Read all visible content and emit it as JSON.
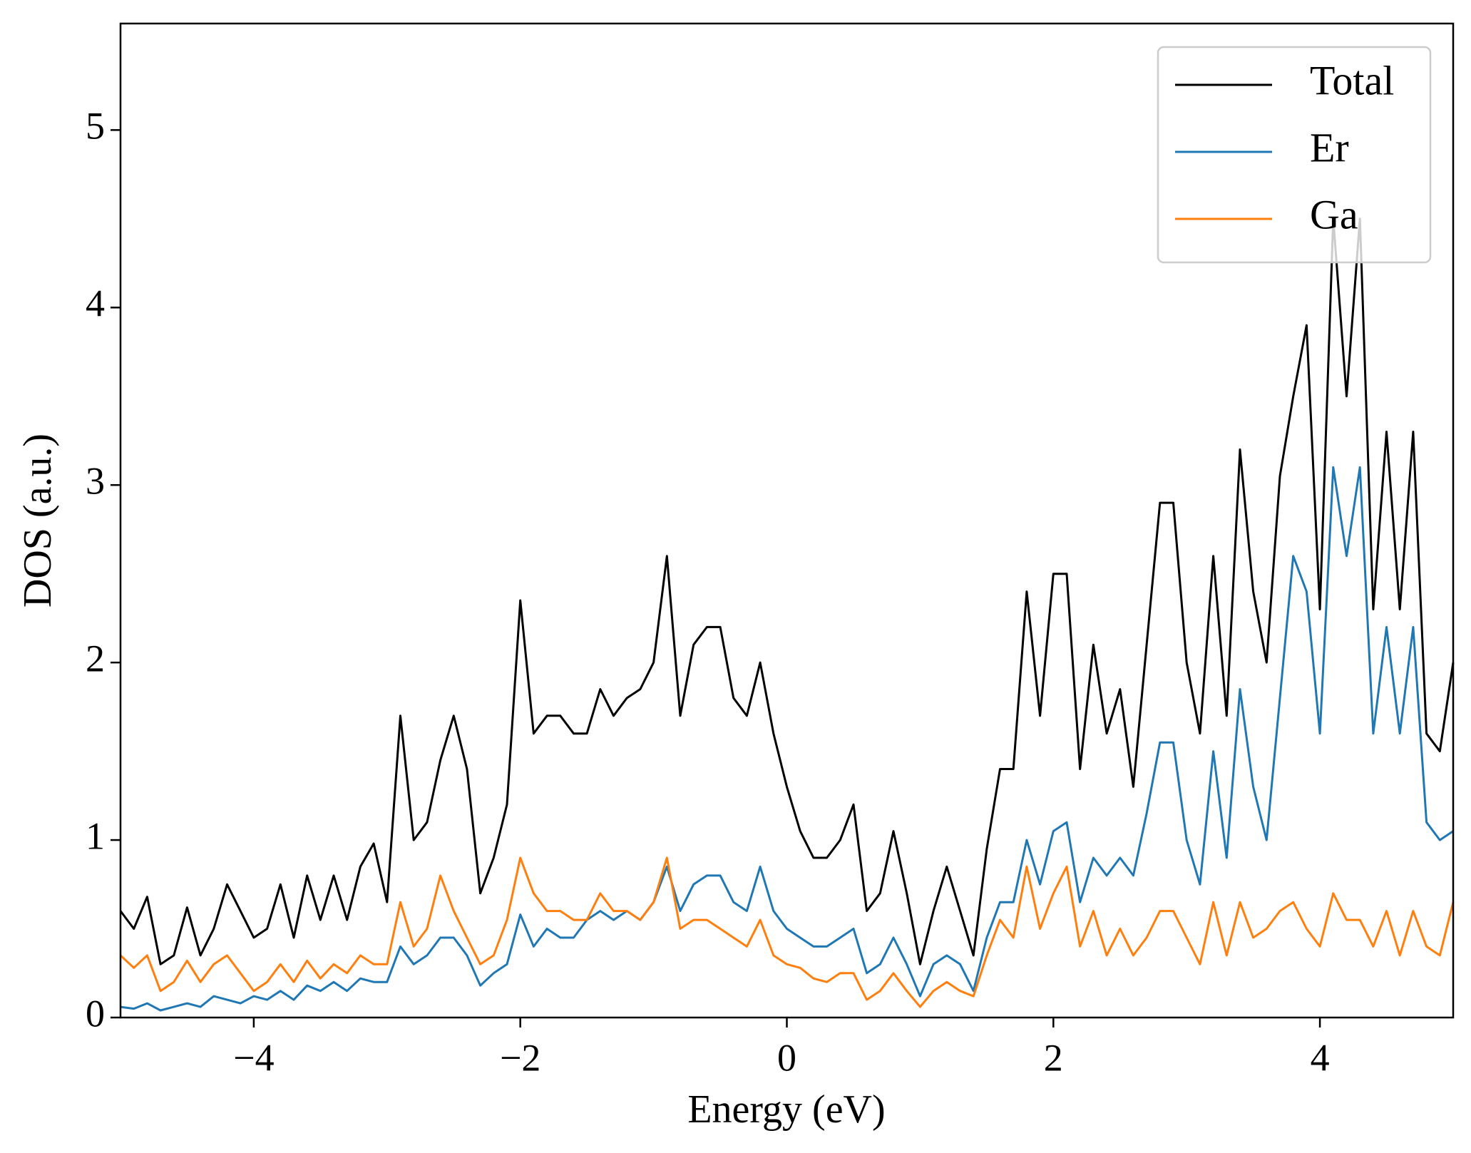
{
  "chart_data": {
    "type": "line",
    "xlabel": "Energy (eV)",
    "ylabel": "DOS (a.u.)",
    "x": [
      -5.0,
      -4.9,
      -4.8,
      -4.7,
      -4.6,
      -4.5,
      -4.4,
      -4.3,
      -4.2,
      -4.1,
      -4.0,
      -3.9,
      -3.8,
      -3.7,
      -3.6,
      -3.5,
      -3.4,
      -3.3,
      -3.2,
      -3.1,
      -3.0,
      -2.9,
      -2.8,
      -2.7,
      -2.6,
      -2.5,
      -2.4,
      -2.3,
      -2.2,
      -2.1,
      -2.0,
      -1.9,
      -1.8,
      -1.7,
      -1.6,
      -1.5,
      -1.4,
      -1.3,
      -1.2,
      -1.1,
      -1.0,
      -0.9,
      -0.8,
      -0.7,
      -0.6,
      -0.5,
      -0.4,
      -0.3,
      -0.2,
      -0.1,
      0.0,
      0.1,
      0.2,
      0.3,
      0.4,
      0.5,
      0.6,
      0.7,
      0.8,
      0.9,
      1.0,
      1.1,
      1.2,
      1.3,
      1.4,
      1.5,
      1.6,
      1.7,
      1.8,
      1.9,
      2.0,
      2.1,
      2.2,
      2.3,
      2.4,
      2.5,
      2.6,
      2.7,
      2.8,
      2.9,
      3.0,
      3.1,
      3.2,
      3.3,
      3.4,
      3.5,
      3.6,
      3.7,
      3.8,
      3.9,
      4.0,
      4.1,
      4.2,
      4.3,
      4.4,
      4.5,
      4.6,
      4.7,
      4.8,
      4.9,
      5.0
    ],
    "series": [
      {
        "name": "Total",
        "color": "#000000",
        "values": [
          0.6,
          0.5,
          0.68,
          0.3,
          0.35,
          0.62,
          0.35,
          0.5,
          0.75,
          0.6,
          0.45,
          0.5,
          0.75,
          0.45,
          0.8,
          0.55,
          0.8,
          0.55,
          0.85,
          0.98,
          0.65,
          1.7,
          1.0,
          1.1,
          1.45,
          1.7,
          1.4,
          0.7,
          0.9,
          1.2,
          2.35,
          1.6,
          1.7,
          1.7,
          1.6,
          1.6,
          1.85,
          1.7,
          1.8,
          1.85,
          2.0,
          2.6,
          1.7,
          2.1,
          2.2,
          2.2,
          1.8,
          1.7,
          2.0,
          1.6,
          1.3,
          1.05,
          0.9,
          0.9,
          1.0,
          1.2,
          0.6,
          0.7,
          1.05,
          0.7,
          0.3,
          0.6,
          0.85,
          0.6,
          0.35,
          0.95,
          1.4,
          1.4,
          2.4,
          1.7,
          2.5,
          2.5,
          1.4,
          2.1,
          1.6,
          1.85,
          1.3,
          2.1,
          2.9,
          2.9,
          2.0,
          1.6,
          2.6,
          1.7,
          3.2,
          2.4,
          2.0,
          3.05,
          3.5,
          3.9,
          2.3,
          4.5,
          3.5,
          4.5,
          2.3,
          3.3,
          2.3,
          3.3,
          1.6,
          1.5,
          2.0
        ]
      },
      {
        "name": "Er",
        "color": "#1f77b4",
        "values": [
          0.06,
          0.05,
          0.08,
          0.04,
          0.06,
          0.08,
          0.06,
          0.12,
          0.1,
          0.08,
          0.12,
          0.1,
          0.15,
          0.1,
          0.18,
          0.15,
          0.2,
          0.15,
          0.22,
          0.2,
          0.2,
          0.4,
          0.3,
          0.35,
          0.45,
          0.45,
          0.35,
          0.18,
          0.25,
          0.3,
          0.58,
          0.4,
          0.5,
          0.45,
          0.45,
          0.55,
          0.6,
          0.55,
          0.6,
          0.55,
          0.65,
          0.85,
          0.6,
          0.75,
          0.8,
          0.8,
          0.65,
          0.6,
          0.85,
          0.6,
          0.5,
          0.45,
          0.4,
          0.4,
          0.45,
          0.5,
          0.25,
          0.3,
          0.45,
          0.3,
          0.12,
          0.3,
          0.35,
          0.3,
          0.15,
          0.45,
          0.65,
          0.65,
          1.0,
          0.75,
          1.05,
          1.1,
          0.65,
          0.9,
          0.8,
          0.9,
          0.8,
          1.15,
          1.55,
          1.55,
          1.0,
          0.75,
          1.5,
          0.9,
          1.85,
          1.3,
          1.0,
          1.8,
          2.6,
          2.4,
          1.6,
          3.1,
          2.6,
          3.1,
          1.6,
          2.2,
          1.6,
          2.2,
          1.1,
          1.0,
          1.05
        ]
      },
      {
        "name": "Ga",
        "color": "#ff7f0e",
        "values": [
          0.35,
          0.28,
          0.35,
          0.15,
          0.2,
          0.32,
          0.2,
          0.3,
          0.35,
          0.25,
          0.15,
          0.2,
          0.3,
          0.2,
          0.32,
          0.22,
          0.3,
          0.25,
          0.35,
          0.3,
          0.3,
          0.65,
          0.4,
          0.5,
          0.8,
          0.6,
          0.45,
          0.3,
          0.35,
          0.55,
          0.9,
          0.7,
          0.6,
          0.6,
          0.55,
          0.55,
          0.7,
          0.6,
          0.6,
          0.55,
          0.65,
          0.9,
          0.5,
          0.55,
          0.55,
          0.5,
          0.45,
          0.4,
          0.55,
          0.35,
          0.3,
          0.28,
          0.22,
          0.2,
          0.25,
          0.25,
          0.1,
          0.15,
          0.25,
          0.15,
          0.06,
          0.15,
          0.2,
          0.15,
          0.12,
          0.35,
          0.55,
          0.45,
          0.85,
          0.5,
          0.7,
          0.85,
          0.4,
          0.6,
          0.35,
          0.5,
          0.35,
          0.45,
          0.6,
          0.6,
          0.45,
          0.3,
          0.65,
          0.35,
          0.65,
          0.45,
          0.5,
          0.6,
          0.65,
          0.5,
          0.4,
          0.7,
          0.55,
          0.55,
          0.4,
          0.6,
          0.35,
          0.6,
          0.4,
          0.35,
          0.65
        ]
      }
    ],
    "xlim": [
      -5,
      5
    ],
    "ylim": [
      0,
      5.6
    ],
    "xticks": [
      {
        "value": -4,
        "label": "−4"
      },
      {
        "value": -2,
        "label": "−2"
      },
      0,
      2,
      4
    ],
    "yticks": [
      0,
      1,
      2,
      3,
      4,
      5
    ],
    "legend": "upper right",
    "grid": false
  }
}
